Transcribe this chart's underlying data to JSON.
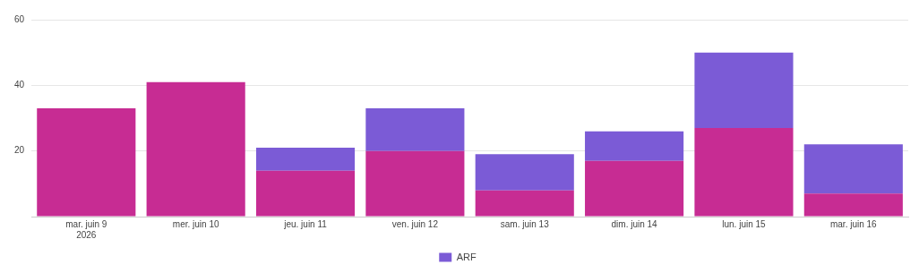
{
  "chart_data": {
    "type": "bar",
    "stacked": true,
    "categories": [
      "mar. juin 9\n2026",
      "mer. juin 10",
      "jeu. juin 11",
      "ven. juin 12",
      "sam. juin 13",
      "dim. juin 14",
      "lun. juin 15",
      "mar. juin 16"
    ],
    "series": [
      {
        "color": "#c72c93",
        "values": [
          33,
          41,
          14,
          20,
          8,
          17,
          27,
          7
        ]
      },
      {
        "name": "ARF",
        "color": "#7b5bd6",
        "values": [
          null,
          null,
          7,
          13,
          11,
          9,
          23,
          15
        ]
      }
    ],
    "ylim": [
      0,
      60
    ],
    "yticks": [
      {
        "value": 0,
        "label": null
      },
      20,
      40,
      60
    ],
    "grid": "y",
    "legend": "bottom"
  }
}
